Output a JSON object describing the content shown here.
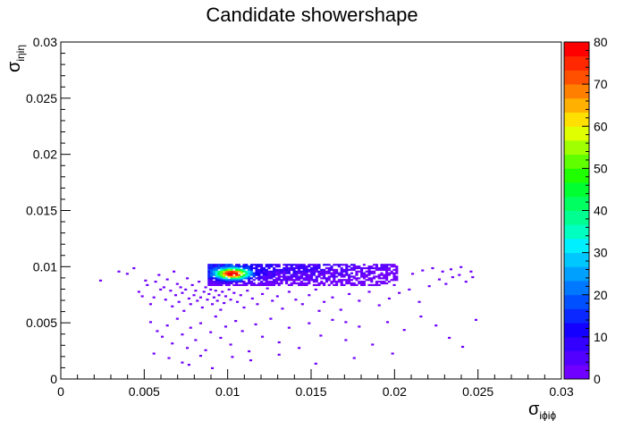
{
  "chart_data": {
    "type": "heatmap",
    "title": "Candidate showershape",
    "xlabel": {
      "symbol": "σ",
      "subscript": "iϕiϕ"
    },
    "ylabel": {
      "symbol": "σ",
      "subscript": "iηiη"
    },
    "xlim": [
      0,
      0.03
    ],
    "ylim": [
      0,
      0.03
    ],
    "x_ticks": [
      "0",
      "0.005",
      "0.01",
      "0.015",
      "0.02",
      "0.025",
      "0.03"
    ],
    "y_ticks": [
      "0",
      "0.005",
      "0.01",
      "0.015",
      "0.02",
      "0.025",
      "0.03"
    ],
    "z_range": [
      0,
      80
    ],
    "z_ticks": [
      "0",
      "10",
      "20",
      "30",
      "40",
      "50",
      "60",
      "70",
      "80"
    ],
    "colorbar_colors": [
      "#7000ff",
      "#5200ff",
      "#3300ff",
      "#1400ff",
      "#0a28ff",
      "#0050ff",
      "#0078ff",
      "#00a0ff",
      "#00c8ff",
      "#00f0ff",
      "#00ffc0",
      "#00ff90",
      "#00ff60",
      "#00ff30",
      "#20ff00",
      "#60ff00",
      "#a0ff00",
      "#e0ff00",
      "#ffe000",
      "#ffb000",
      "#ff8000",
      "#ff5000",
      "#ff2800",
      "#ff0000"
    ],
    "dense_band": {
      "x_range": [
        0.0088,
        0.0202
      ],
      "y_range": [
        0.0083,
        0.0102
      ],
      "peak": [
        0.0102,
        0.0093
      ],
      "peak_value": 80
    },
    "sparse_points": [
      [
        0.0023,
        0.0087
      ],
      [
        0.0034,
        0.0095
      ],
      [
        0.0039,
        0.0093
      ],
      [
        0.0043,
        0.0098
      ],
      [
        0.0046,
        0.0077
      ],
      [
        0.0048,
        0.0073
      ],
      [
        0.005,
        0.0087
      ],
      [
        0.0051,
        0.0083
      ],
      [
        0.0053,
        0.0066
      ],
      [
        0.0055,
        0.0072
      ],
      [
        0.0056,
        0.0086
      ],
      [
        0.0058,
        0.0092
      ],
      [
        0.0059,
        0.0079
      ],
      [
        0.0061,
        0.0081
      ],
      [
        0.0062,
        0.007
      ],
      [
        0.0063,
        0.0088
      ],
      [
        0.0065,
        0.0078
      ],
      [
        0.0066,
        0.0064
      ],
      [
        0.0067,
        0.0095
      ],
      [
        0.0068,
        0.0074
      ],
      [
        0.0069,
        0.0084
      ],
      [
        0.007,
        0.0068
      ],
      [
        0.0071,
        0.0081
      ],
      [
        0.0072,
        0.0076
      ],
      [
        0.0073,
        0.006
      ],
      [
        0.0074,
        0.0079
      ],
      [
        0.0075,
        0.0089
      ],
      [
        0.0076,
        0.0071
      ],
      [
        0.0077,
        0.0066
      ],
      [
        0.0078,
        0.0083
      ],
      [
        0.0079,
        0.0074
      ],
      [
        0.008,
        0.0078
      ],
      [
        0.0081,
        0.0069
      ],
      [
        0.0082,
        0.0086
      ],
      [
        0.0083,
        0.0072
      ],
      [
        0.0084,
        0.0063
      ],
      [
        0.0085,
        0.0077
      ],
      [
        0.0086,
        0.0081
      ],
      [
        0.0087,
        0.007
      ],
      [
        0.0088,
        0.0075
      ],
      [
        0.0089,
        0.0079
      ],
      [
        0.009,
        0.0066
      ],
      [
        0.0091,
        0.0072
      ],
      [
        0.0092,
        0.0078
      ],
      [
        0.0093,
        0.0069
      ],
      [
        0.0094,
        0.0074
      ],
      [
        0.0095,
        0.0061
      ],
      [
        0.0096,
        0.0077
      ],
      [
        0.0097,
        0.0067
      ],
      [
        0.0098,
        0.0073
      ],
      [
        0.01,
        0.0079
      ],
      [
        0.0101,
        0.007
      ],
      [
        0.0103,
        0.0076
      ],
      [
        0.0105,
        0.0068
      ],
      [
        0.0107,
        0.0074
      ],
      [
        0.0109,
        0.0063
      ],
      [
        0.0111,
        0.0078
      ],
      [
        0.0114,
        0.0071
      ],
      [
        0.0117,
        0.0066
      ],
      [
        0.012,
        0.0075
      ],
      [
        0.0123,
        0.008
      ],
      [
        0.0126,
        0.0069
      ],
      [
        0.0129,
        0.0073
      ],
      [
        0.0132,
        0.0062
      ],
      [
        0.0136,
        0.0077
      ],
      [
        0.014,
        0.007
      ],
      [
        0.0144,
        0.0066
      ],
      [
        0.0148,
        0.0074
      ],
      [
        0.0152,
        0.0079
      ],
      [
        0.0157,
        0.0068
      ],
      [
        0.0162,
        0.0072
      ],
      [
        0.0167,
        0.0061
      ],
      [
        0.0172,
        0.0075
      ],
      [
        0.0178,
        0.0069
      ],
      [
        0.0184,
        0.0077
      ],
      [
        0.019,
        0.0065
      ],
      [
        0.0196,
        0.0071
      ],
      [
        0.0202,
        0.0076
      ],
      [
        0.0208,
        0.0079
      ],
      [
        0.0214,
        0.0068
      ],
      [
        0.022,
        0.0082
      ],
      [
        0.0226,
        0.0088
      ],
      [
        0.023,
        0.0084
      ],
      [
        0.0234,
        0.009
      ],
      [
        0.0238,
        0.0092
      ],
      [
        0.0242,
        0.0086
      ],
      [
        0.0245,
        0.0095
      ],
      [
        0.0246,
        0.009
      ],
      [
        0.021,
        0.0093
      ],
      [
        0.0216,
        0.0096
      ],
      [
        0.0222,
        0.0098
      ],
      [
        0.0228,
        0.0095
      ],
      [
        0.0233,
        0.0097
      ],
      [
        0.0239,
        0.0099
      ],
      [
        0.0053,
        0.005
      ],
      [
        0.0057,
        0.0042
      ],
      [
        0.006,
        0.0037
      ],
      [
        0.0063,
        0.0047
      ],
      [
        0.0066,
        0.0031
      ],
      [
        0.0069,
        0.0053
      ],
      [
        0.0072,
        0.0039
      ],
      [
        0.0075,
        0.0027
      ],
      [
        0.0077,
        0.0045
      ],
      [
        0.008,
        0.0034
      ],
      [
        0.0083,
        0.0049
      ],
      [
        0.0086,
        0.0025
      ],
      [
        0.0089,
        0.0041
      ],
      [
        0.0092,
        0.0055
      ],
      [
        0.0095,
        0.0036
      ],
      [
        0.0098,
        0.0046
      ],
      [
        0.0101,
        0.003
      ],
      [
        0.0104,
        0.0051
      ],
      [
        0.0108,
        0.0042
      ],
      [
        0.0112,
        0.0024
      ],
      [
        0.0116,
        0.0048
      ],
      [
        0.012,
        0.0037
      ],
      [
        0.0125,
        0.0053
      ],
      [
        0.013,
        0.0032
      ],
      [
        0.0136,
        0.0045
      ],
      [
        0.0142,
        0.0027
      ],
      [
        0.0148,
        0.0049
      ],
      [
        0.0155,
        0.0038
      ],
      [
        0.0162,
        0.0052
      ],
      [
        0.017,
        0.0034
      ],
      [
        0.0178,
        0.0046
      ],
      [
        0.0186,
        0.003
      ],
      [
        0.0195,
        0.005
      ],
      [
        0.0205,
        0.0043
      ],
      [
        0.0215,
        0.0055
      ],
      [
        0.0224,
        0.0047
      ],
      [
        0.0232,
        0.0036
      ],
      [
        0.024,
        0.0028
      ],
      [
        0.0248,
        0.0052
      ],
      [
        0.0055,
        0.0022
      ],
      [
        0.0064,
        0.0018
      ],
      [
        0.0072,
        0.0014
      ],
      [
        0.0076,
        0.0012
      ],
      [
        0.0083,
        0.002
      ],
      [
        0.009,
        0.0009
      ],
      [
        0.0102,
        0.0019
      ],
      [
        0.0113,
        0.0016
      ],
      [
        0.013,
        0.0021
      ],
      [
        0.0152,
        0.0013
      ],
      [
        0.0175,
        0.0018
      ],
      [
        0.0198,
        0.0022
      ],
      [
        0.017,
        0.005
      ],
      [
        0.0154,
        0.006
      ]
    ]
  }
}
